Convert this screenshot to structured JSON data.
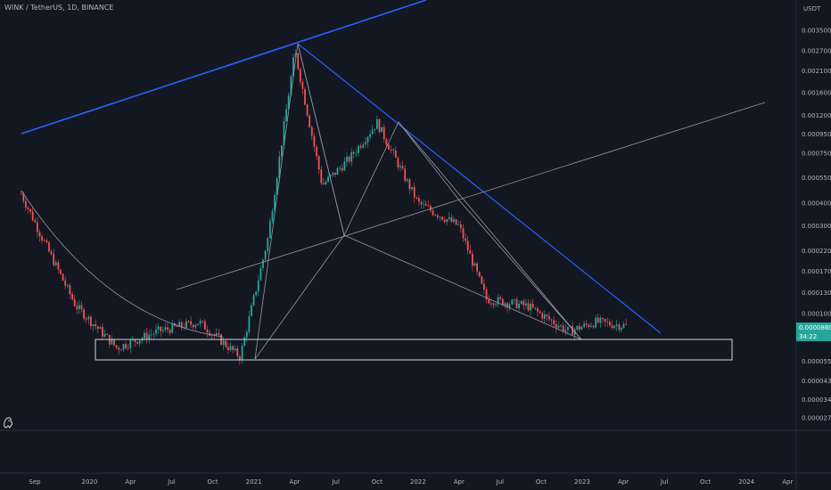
{
  "header": {
    "symbol": "WINK / TetherUS",
    "interval": "1D",
    "exchange": "BINANCE",
    "separator": ", "
  },
  "colors": {
    "background": "#131722",
    "up": "#26a69a",
    "down": "#ef5350",
    "trendline": "#2962ff",
    "guide": "#9598a1",
    "axis_text": "#b2b5be",
    "grid": "#2a2e39"
  },
  "chart_data": {
    "type": "candlestick",
    "currency": "USDT",
    "y_scale": "log",
    "y_ticks": [
      "0.0035000",
      "0.0027000",
      "0.0021000",
      "0.0016000",
      "0.0012000",
      "0.0009500",
      "0.0007500",
      "0.0005500",
      "0.0004000",
      "0.0003000",
      "0.0002200",
      "0.0001700",
      "0.0001300",
      "0.0001000",
      "0.0000550",
      "0.0000430",
      "0.0000340",
      "0.0000270"
    ],
    "x_ticks": [
      "Sep",
      "2020",
      "Apr",
      "Jul",
      "Oct",
      "2021",
      "Apr",
      "Jul",
      "Oct",
      "2022",
      "Apr",
      "Jul",
      "Oct",
      "2023",
      "Apr",
      "Jul",
      "Oct",
      "2024",
      "Apr"
    ],
    "last_price": "0.0000860",
    "countdown": "34:22",
    "series_approx": [
      {
        "x": "2019-08",
        "y": 0.00045
      },
      {
        "x": "2019-10",
        "y": 0.00022
      },
      {
        "x": "2019-12",
        "y": 0.00011
      },
      {
        "x": "2020-03",
        "y": 6.5e-05
      },
      {
        "x": "2020-06",
        "y": 8e-05
      },
      {
        "x": "2020-09",
        "y": 9e-05
      },
      {
        "x": "2020-12",
        "y": 5.8e-05
      },
      {
        "x": "2021-02",
        "y": 0.00025
      },
      {
        "x": "2021-04",
        "y": 0.0027
      },
      {
        "x": "2021-06",
        "y": 0.0005
      },
      {
        "x": "2021-08",
        "y": 0.0007
      },
      {
        "x": "2021-10",
        "y": 0.0011
      },
      {
        "x": "2022-01",
        "y": 0.0004
      },
      {
        "x": "2022-04",
        "y": 0.0003
      },
      {
        "x": "2022-06",
        "y": 0.00012
      },
      {
        "x": "2022-09",
        "y": 0.00011
      },
      {
        "x": "2022-12",
        "y": 8e-05
      },
      {
        "x": "2023-02",
        "y": 9e-05
      },
      {
        "x": "2023-04",
        "y": 8.6e-05
      }
    ]
  }
}
